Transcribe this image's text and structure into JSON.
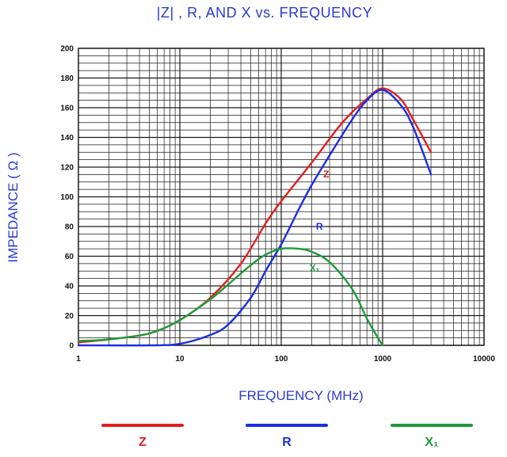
{
  "chart_data": {
    "type": "line",
    "title": "|Z| , R, AND X vs. FREQUENCY",
    "xlabel": "FREQUENCY (MHz)",
    "ylabel": "IMPEDANCE ( Ω )",
    "xscale": "log",
    "xlim": [
      1,
      10000
    ],
    "ylim": [
      0,
      200
    ],
    "xticks": [
      "1",
      "10",
      "100",
      "1000",
      "10000"
    ],
    "yticks": [
      "0",
      "20",
      "40",
      "60",
      "80",
      "100",
      "120",
      "140",
      "160",
      "180",
      "200"
    ],
    "grid": true,
    "legend_position": "bottom",
    "series": [
      {
        "name": "Z",
        "inline_label": "Z",
        "color": "#e02020",
        "x": [
          1,
          2,
          5,
          10,
          20,
          40,
          70,
          100,
          200,
          400,
          700,
          1000,
          1500,
          2000,
          3000
        ],
        "y": [
          2,
          4,
          8,
          17,
          32,
          55,
          82,
          97,
          123,
          150,
          166,
          173,
          166,
          152,
          130
        ]
      },
      {
        "name": "R",
        "inline_label": "R",
        "color": "#1a2ee0",
        "x": [
          1,
          5,
          10,
          20,
          30,
          50,
          70,
          100,
          150,
          200,
          300,
          500,
          700,
          1000,
          1500,
          2000,
          3000
        ],
        "y": [
          0,
          0,
          1,
          7,
          14,
          32,
          50,
          68,
          92,
          108,
          128,
          152,
          165,
          172,
          162,
          147,
          115
        ]
      },
      {
        "name": "X₁",
        "inline_label": "X₁",
        "color": "#1e9a3a",
        "x": [
          1,
          2,
          5,
          10,
          20,
          30,
          50,
          70,
          100,
          150,
          200,
          300,
          500,
          700,
          900,
          1000
        ],
        "y": [
          3,
          4,
          8,
          17,
          31,
          41,
          54,
          61,
          65,
          65,
          63,
          56,
          38,
          18,
          5,
          0
        ]
      }
    ]
  }
}
